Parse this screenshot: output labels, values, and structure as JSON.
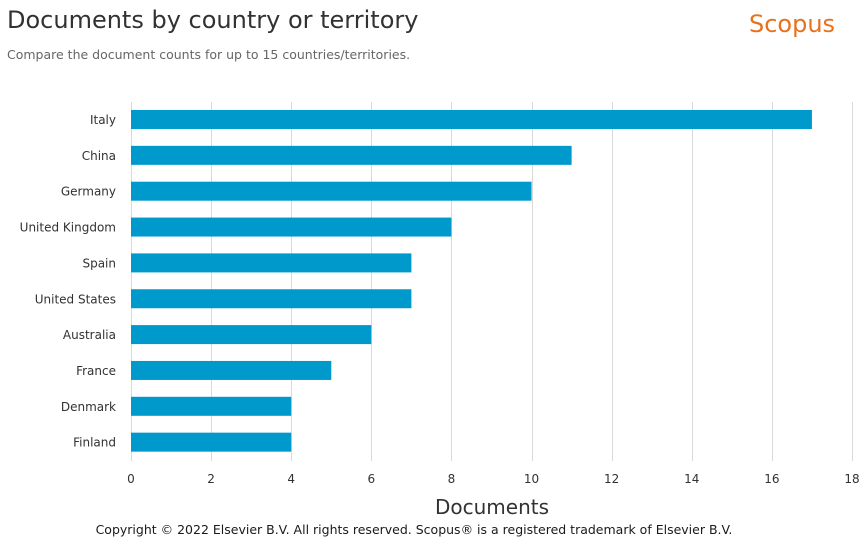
{
  "header": {
    "title": "Documents by country or territory",
    "subtitle": "Compare the document counts for up to 15 countries/territories.",
    "brand": "Scopus"
  },
  "footer": {
    "copyright": "Copyright © 2022 Elsevier B.V. All rights reserved. Scopus® is a registered trademark of Elsevier B.V."
  },
  "colors": {
    "bar": "#0099cc",
    "grid": "#d9d9d9",
    "brand": "#e9711c"
  },
  "chart_data": {
    "type": "bar",
    "orientation": "horizontal",
    "categories": [
      "Italy",
      "China",
      "Germany",
      "United Kingdom",
      "Spain",
      "United States",
      "Australia",
      "France",
      "Denmark",
      "Finland"
    ],
    "values": [
      17,
      11,
      10,
      8,
      7,
      7,
      6,
      5,
      4,
      4
    ],
    "xlabel": "Documents",
    "ylabel": "",
    "xlim": [
      0,
      18
    ],
    "xticks": [
      0,
      2,
      4,
      6,
      8,
      10,
      12,
      14,
      16,
      18
    ],
    "grid": true
  }
}
